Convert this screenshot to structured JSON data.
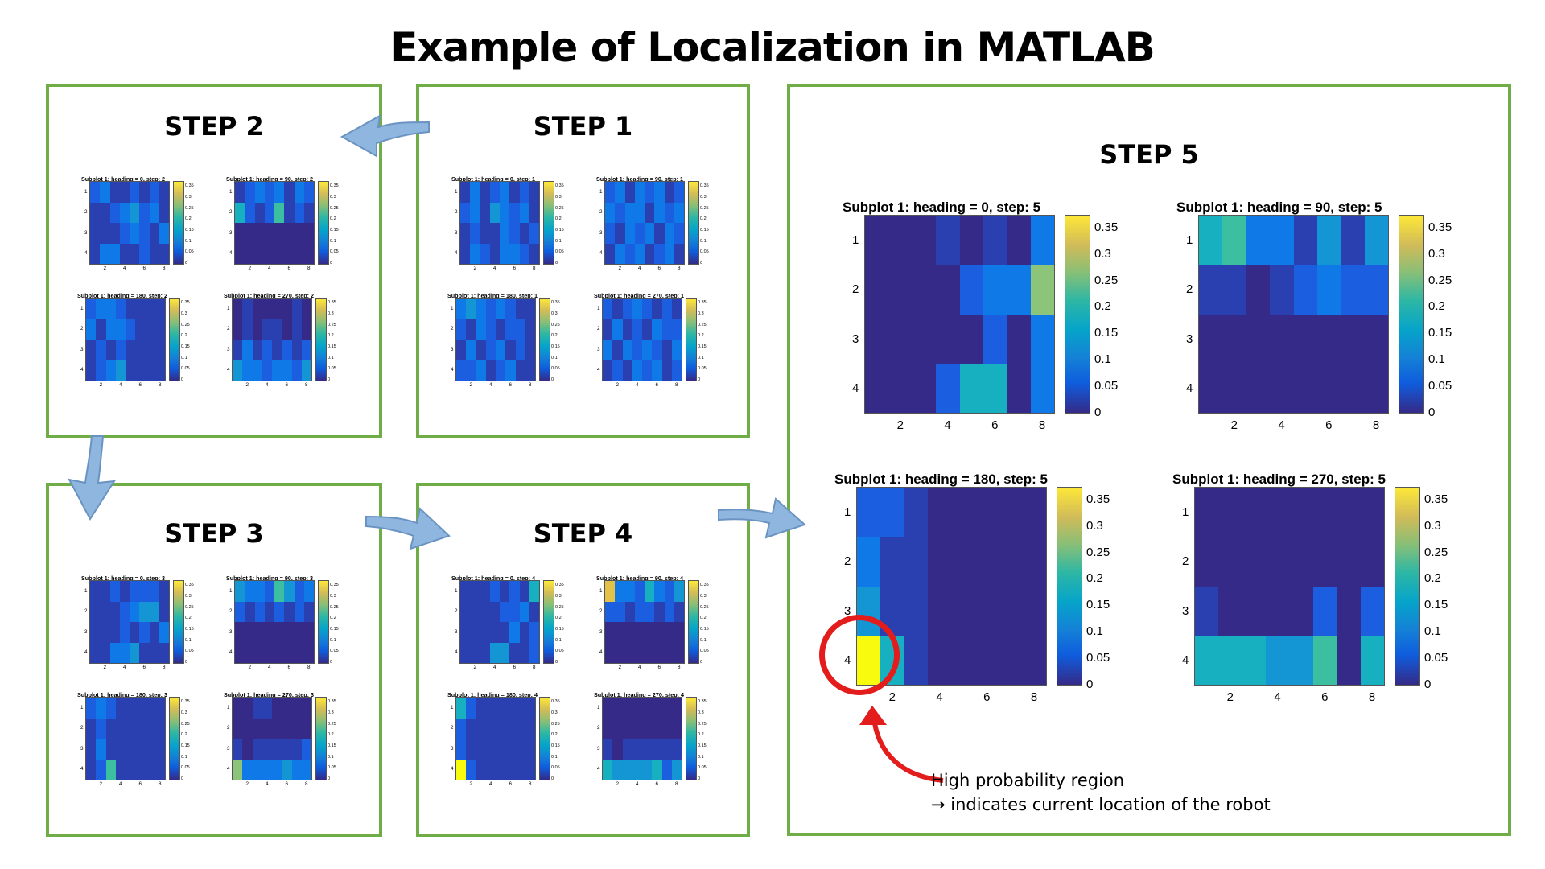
{
  "title": "Example of Localization in MATLAB",
  "colors": {
    "panel_border": "#70ad47",
    "arrow": "#8fb6de",
    "highlight": "#e31c1c"
  },
  "palette": [
    "#352a87",
    "#2a3fb0",
    "#1b5ee0",
    "#0f79e8",
    "#1496d4",
    "#16b0c0",
    "#3bbfa0",
    "#8cc47a",
    "#e3c24a",
    "#f9fb0e"
  ],
  "colorbar_ticks": [
    "0.35",
    "0.3",
    "0.25",
    "0.2",
    "0.15",
    "0.1",
    "0.05",
    "0"
  ],
  "x_ticks": [
    "2",
    "4",
    "6",
    "8"
  ],
  "y_ticks": [
    "1",
    "2",
    "3",
    "4"
  ],
  "steps": [
    {
      "label": "STEP 1",
      "plots": [
        {
          "title": "Subplot 1: heading = 0, step: 1",
          "levels": [
            [
              1,
              3,
              1,
              2,
              3,
              1,
              2,
              1
            ],
            [
              2,
              3,
              1,
              4,
              3,
              2,
              3,
              1
            ],
            [
              1,
              2,
              1,
              1,
              3,
              2,
              1,
              2
            ],
            [
              1,
              3,
              2,
              1,
              3,
              3,
              2,
              1
            ]
          ]
        },
        {
          "title": "Subplot 1: heading = 90, step: 1",
          "levels": [
            [
              2,
              3,
              1,
              3,
              2,
              3,
              1,
              2
            ],
            [
              3,
              2,
              3,
              3,
              1,
              3,
              2,
              3
            ],
            [
              2,
              1,
              3,
              2,
              3,
              1,
              3,
              2
            ],
            [
              1,
              3,
              2,
              3,
              1,
              2,
              3,
              1
            ]
          ]
        },
        {
          "title": "Subplot 1: heading = 180, step: 1",
          "levels": [
            [
              3,
              4,
              3,
              2,
              3,
              2,
              1,
              1
            ],
            [
              2,
              1,
              3,
              2,
              1,
              2,
              2,
              1
            ],
            [
              1,
              3,
              1,
              2,
              3,
              1,
              2,
              1
            ],
            [
              2,
              2,
              3,
              1,
              2,
              3,
              1,
              1
            ]
          ]
        },
        {
          "title": "Subplot 1: heading = 270, step: 1",
          "levels": [
            [
              2,
              1,
              2,
              3,
              2,
              1,
              2,
              1
            ],
            [
              1,
              3,
              1,
              2,
              1,
              3,
              2,
              2
            ],
            [
              3,
              1,
              3,
              2,
              3,
              2,
              1,
              3
            ],
            [
              1,
              2,
              1,
              3,
              2,
              3,
              1,
              2
            ]
          ]
        }
      ]
    },
    {
      "label": "STEP 2",
      "plots": [
        {
          "title": "Subplot 1: heading = 0, step: 2",
          "levels": [
            [
              2,
              3,
              1,
              1,
              2,
              1,
              2,
              1
            ],
            [
              1,
              1,
              2,
              3,
              4,
              2,
              3,
              1
            ],
            [
              1,
              1,
              1,
              2,
              3,
              2,
              1,
              3
            ],
            [
              1,
              3,
              3,
              1,
              1,
              2,
              1,
              1
            ]
          ]
        },
        {
          "title": "Subplot 1: heading = 90, step: 2",
          "levels": [
            [
              1,
              2,
              3,
              2,
              3,
              1,
              3,
              2
            ],
            [
              5,
              2,
              1,
              2,
              6,
              1,
              2,
              1
            ],
            [
              0,
              0,
              0,
              0,
              0,
              0,
              0,
              0
            ],
            [
              0,
              0,
              0,
              0,
              0,
              0,
              0,
              0
            ]
          ]
        },
        {
          "title": "Subplot 1: heading = 180, step: 2",
          "levels": [
            [
              2,
              3,
              3,
              2,
              1,
              1,
              1,
              1
            ],
            [
              3,
              1,
              3,
              3,
              2,
              1,
              1,
              1
            ],
            [
              1,
              2,
              1,
              2,
              1,
              1,
              1,
              1
            ],
            [
              1,
              2,
              3,
              4,
              1,
              1,
              1,
              1
            ]
          ]
        },
        {
          "title": "Subplot 1: heading = 270, step: 2",
          "levels": [
            [
              0,
              1,
              0,
              0,
              0,
              0,
              1,
              0
            ],
            [
              0,
              1,
              0,
              1,
              1,
              0,
              1,
              0
            ],
            [
              1,
              3,
              1,
              2,
              1,
              2,
              1,
              2
            ],
            [
              4,
              3,
              3,
              2,
              3,
              3,
              2,
              4
            ]
          ]
        }
      ]
    },
    {
      "label": "STEP 3",
      "plots": [
        {
          "title": "Subplot 1: heading = 0, step: 3",
          "levels": [
            [
              1,
              1,
              2,
              1,
              2,
              2,
              2,
              1
            ],
            [
              1,
              1,
              1,
              2,
              3,
              4,
              4,
              1
            ],
            [
              1,
              1,
              1,
              2,
              1,
              2,
              1,
              3
            ],
            [
              1,
              1,
              3,
              3,
              4,
              1,
              1,
              1
            ]
          ]
        },
        {
          "title": "Subplot 1: heading = 90, step: 3",
          "levels": [
            [
              4,
              3,
              3,
              2,
              6,
              4,
              2,
              3
            ],
            [
              2,
              1,
              2,
              1,
              2,
              1,
              2,
              1
            ],
            [
              0,
              0,
              0,
              0,
              0,
              0,
              0,
              0
            ],
            [
              0,
              0,
              0,
              0,
              0,
              0,
              0,
              0
            ]
          ]
        },
        {
          "title": "Subplot 1: heading = 180, step: 3",
          "levels": [
            [
              2,
              3,
              2,
              1,
              1,
              1,
              1,
              1
            ],
            [
              1,
              2,
              1,
              1,
              1,
              1,
              1,
              1
            ],
            [
              1,
              3,
              1,
              1,
              1,
              1,
              1,
              1
            ],
            [
              1,
              2,
              6,
              1,
              1,
              1,
              1,
              1
            ]
          ]
        },
        {
          "title": "Subplot 1: heading = 270, step: 3",
          "levels": [
            [
              0,
              0,
              1,
              1,
              0,
              0,
              0,
              0
            ],
            [
              0,
              0,
              0,
              0,
              0,
              0,
              0,
              0
            ],
            [
              1,
              0,
              1,
              1,
              1,
              1,
              1,
              2
            ],
            [
              7,
              3,
              3,
              3,
              3,
              4,
              3,
              3
            ]
          ]
        }
      ]
    },
    {
      "label": "STEP 4",
      "plots": [
        {
          "title": "Subplot 1: heading = 0, step: 4",
          "levels": [
            [
              1,
              1,
              1,
              2,
              1,
              2,
              1,
              5
            ],
            [
              1,
              1,
              1,
              1,
              2,
              2,
              3,
              1
            ],
            [
              1,
              1,
              1,
              1,
              1,
              3,
              1,
              2
            ],
            [
              1,
              1,
              1,
              4,
              4,
              1,
              1,
              2
            ]
          ]
        },
        {
          "title": "Subplot 1: heading = 90, step: 4",
          "levels": [
            [
              8,
              3,
              3,
              2,
              5,
              3,
              2,
              4
            ],
            [
              2,
              2,
              1,
              2,
              2,
              1,
              2,
              1
            ],
            [
              0,
              0,
              0,
              0,
              0,
              0,
              0,
              0
            ],
            [
              0,
              0,
              0,
              0,
              0,
              0,
              0,
              0
            ]
          ]
        },
        {
          "title": "Subplot 1: heading = 180, step: 4",
          "levels": [
            [
              5,
              2,
              1,
              1,
              1,
              1,
              1,
              1
            ],
            [
              2,
              1,
              1,
              1,
              1,
              1,
              1,
              1
            ],
            [
              2,
              1,
              1,
              1,
              1,
              1,
              1,
              1
            ],
            [
              9,
              2,
              1,
              1,
              1,
              1,
              1,
              1
            ]
          ]
        },
        {
          "title": "Subplot 1: heading = 270, step: 4",
          "levels": [
            [
              0,
              0,
              0,
              0,
              0,
              0,
              0,
              0
            ],
            [
              0,
              0,
              0,
              0,
              0,
              0,
              0,
              0
            ],
            [
              1,
              0,
              1,
              1,
              1,
              1,
              1,
              1
            ],
            [
              5,
              4,
              4,
              4,
              4,
              5,
              2,
              4
            ]
          ]
        }
      ]
    },
    {
      "label": "STEP 5",
      "plots": [
        {
          "title": "Subplot 1: heading = 0, step: 5",
          "levels": [
            [
              0,
              0,
              0,
              1,
              0,
              1,
              0,
              3
            ],
            [
              0,
              0,
              0,
              0,
              2,
              3,
              3,
              7
            ],
            [
              0,
              0,
              0,
              0,
              0,
              2,
              0,
              3
            ],
            [
              0,
              0,
              0,
              2,
              5,
              5,
              0,
              3
            ]
          ]
        },
        {
          "title": "Subplot 1: heading = 90, step: 5",
          "levels": [
            [
              5,
              6,
              3,
              3,
              1,
              4,
              1,
              4
            ],
            [
              1,
              1,
              0,
              1,
              2,
              3,
              2,
              2
            ],
            [
              0,
              0,
              0,
              0,
              0,
              0,
              0,
              0
            ],
            [
              0,
              0,
              0,
              0,
              0,
              0,
              0,
              0
            ]
          ]
        },
        {
          "title": "Subplot 1: heading = 180, step: 5",
          "levels": [
            [
              2,
              2,
              1,
              0,
              0,
              0,
              0,
              0
            ],
            [
              3,
              1,
              1,
              0,
              0,
              0,
              0,
              0
            ],
            [
              4,
              1,
              1,
              0,
              0,
              0,
              0,
              0
            ],
            [
              9,
              5,
              1,
              0,
              0,
              0,
              0,
              0
            ]
          ]
        },
        {
          "title": "Subplot 1: heading = 270, step: 5",
          "levels": [
            [
              0,
              0,
              0,
              0,
              0,
              0,
              0,
              0
            ],
            [
              0,
              0,
              0,
              0,
              0,
              0,
              0,
              0
            ],
            [
              1,
              0,
              0,
              0,
              0,
              2,
              0,
              2
            ],
            [
              5,
              5,
              5,
              4,
              4,
              6,
              0,
              5
            ]
          ]
        }
      ]
    }
  ],
  "annotation": {
    "line1": "High probability region",
    "line2": "→ indicates current location of the robot"
  }
}
